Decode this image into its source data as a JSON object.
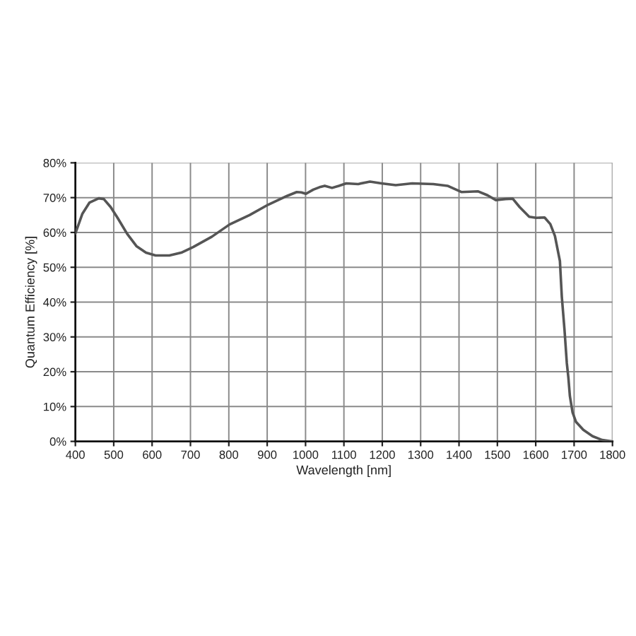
{
  "chart_data": {
    "type": "line",
    "xlabel": "Wavelength [nm]",
    "ylabel": "Quantum Efficiency [%]",
    "x": [
      400,
      418,
      437,
      461,
      474,
      492,
      510,
      535,
      559,
      584,
      609,
      645,
      676,
      707,
      756,
      802,
      854,
      903,
      952,
      977,
      989,
      1001,
      1020,
      1039,
      1050,
      1069,
      1087,
      1106,
      1137,
      1168,
      1198,
      1235,
      1278,
      1333,
      1370,
      1407,
      1450,
      1474,
      1496,
      1521,
      1540,
      1558,
      1583,
      1601,
      1623,
      1638,
      1650,
      1663,
      1668,
      1675,
      1681,
      1685,
      1689,
      1696,
      1705,
      1724,
      1748,
      1773,
      1798
    ],
    "series": [
      {
        "color": "#555555",
        "values": [
          59.7,
          65.3,
          68.6,
          69.8,
          69.6,
          67.3,
          64.2,
          59.6,
          56.1,
          54.2,
          53.4,
          53.4,
          54.2,
          55.8,
          58.8,
          62.3,
          65.0,
          68.0,
          70.5,
          71.6,
          71.5,
          71.1,
          72.3,
          73.1,
          73.4,
          72.8,
          73.4,
          74.1,
          73.9,
          74.6,
          74.1,
          73.6,
          74.1,
          73.9,
          73.4,
          71.6,
          71.8,
          70.7,
          69.3,
          69.6,
          69.7,
          67.3,
          64.5,
          64.2,
          64.3,
          62.4,
          59.0,
          51.8,
          41.5,
          32.0,
          22.5,
          18.4,
          13.0,
          8.3,
          5.6,
          3.3,
          1.5,
          0.4,
          0
        ]
      }
    ],
    "xlim": [
      400,
      1800
    ],
    "ylim": [
      0,
      80
    ],
    "xticks": [
      400,
      500,
      600,
      700,
      800,
      900,
      1000,
      1100,
      1200,
      1300,
      1400,
      1500,
      1600,
      1700,
      1800
    ],
    "yticks": [
      {
        "value": 0,
        "label": "0%"
      },
      {
        "value": 10,
        "label": "10%"
      },
      {
        "value": 20,
        "label": "20%"
      },
      {
        "value": 30,
        "label": "30%"
      },
      {
        "value": 40,
        "label": "40%"
      },
      {
        "value": 50,
        "label": "50%"
      },
      {
        "value": 60,
        "label": "60%"
      },
      {
        "value": 70,
        "label": "70%"
      },
      {
        "value": 80,
        "label": "80%"
      }
    ],
    "grid": true
  }
}
